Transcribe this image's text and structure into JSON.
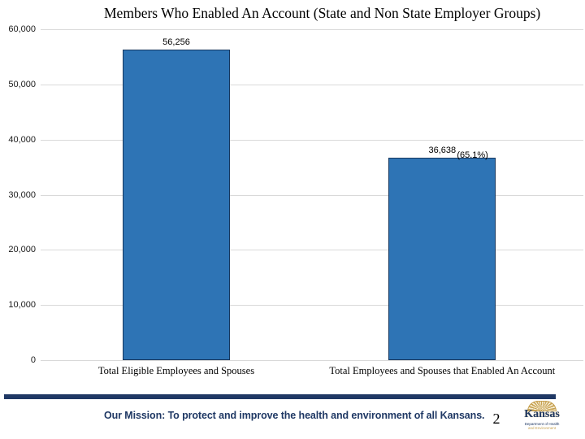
{
  "title": "Members Who Enabled An Account (State and Non State Employer Groups)",
  "chart_data": {
    "type": "bar",
    "title": "Members Who Enabled An Account (State and Non State Employer Groups)",
    "categories": [
      "Total Eligible Employees and Spouses",
      "Total Employees and Spouses that Enabled An Account"
    ],
    "values": [
      56256,
      36638
    ],
    "data_labels": [
      "56,256",
      "36,638"
    ],
    "annotations": [
      "",
      "(65.1%)"
    ],
    "xlabel": "",
    "ylabel": "",
    "ylim": [
      0,
      60000
    ],
    "ytick_interval": 10000,
    "ytick_labels": [
      "0",
      "10,000",
      "20,000",
      "30,000",
      "40,000",
      "50,000",
      "60,000"
    ],
    "grid": true,
    "legend": "none",
    "bar_color": "#2e74b5",
    "bar_border_color": "#17375e"
  },
  "footer": {
    "mission_text": "Our Mission: To protect and improve the health and environment of all Kansans.",
    "page_number": "2",
    "logo": {
      "name": "Kansas",
      "sub_line1": "Department of Health",
      "sub_line2": "and Environment"
    }
  },
  "colors": {
    "navy": "#1f3864",
    "gold": "#c7a252",
    "grid": "#d9d9d9",
    "bar_blue": "#2e74b5"
  }
}
